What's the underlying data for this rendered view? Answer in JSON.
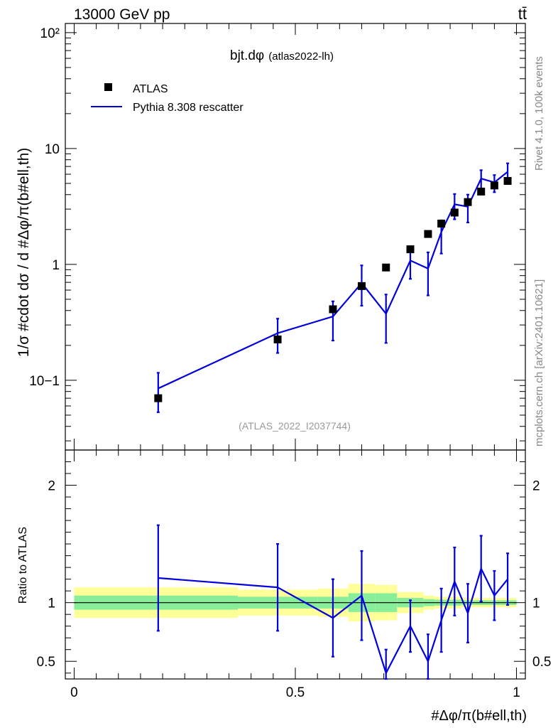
{
  "header": {
    "energy_label": "13000 GeV pp",
    "process_label": "tt̄"
  },
  "side_labels": {
    "rivet": "Rivet 4.1.0,  100k events",
    "mcplots": "mcplots.cern.ch [arXiv:2401.10621]"
  },
  "colors": {
    "mc_line": "#0000dd",
    "band_inner": "#88ee99",
    "band_outer": "#ffff99",
    "data_marker": "#000000"
  },
  "chart_data": [
    {
      "type": "scatter",
      "panel": "main",
      "title": "bjt.dφ",
      "title_suffix": "(atlas2022-lh)",
      "analysis_label": "(ATLAS_2022_I2037744)",
      "ylabel": "1/σ #cdot dσ / d #Δφ/π(b#ell,th)",
      "yscale": "log",
      "ylim": [
        0.025,
        120
      ],
      "xlim": [
        -0.02,
        1.02
      ],
      "y_ticks": [
        "10−1",
        "1",
        "10",
        "10²"
      ],
      "legend": {
        "data": "ATLAS",
        "mc": "Pythia 8.308 rescatter",
        "placement": "top-left"
      },
      "series": [
        {
          "name": "ATLAS",
          "x": [
            0.19,
            0.46,
            0.585,
            0.65,
            0.705,
            0.76,
            0.8,
            0.83,
            0.86,
            0.89,
            0.92,
            0.95,
            0.98
          ],
          "y": [
            0.07,
            0.225,
            0.41,
            0.65,
            0.94,
            1.35,
            1.83,
            2.25,
            2.8,
            3.45,
            4.25,
            4.8,
            5.25
          ]
        },
        {
          "name": "Pythia 8.308 rescatter",
          "x": [
            0.19,
            0.46,
            0.585,
            0.65,
            0.705,
            0.76,
            0.8,
            0.83,
            0.86,
            0.89,
            0.92,
            0.95,
            0.98
          ],
          "y": [
            0.085,
            0.255,
            0.355,
            0.69,
            0.375,
            1.08,
            0.92,
            1.9,
            3.3,
            3.15,
            5.5,
            5.1,
            6.3
          ],
          "yerr_low": [
            0.032,
            0.083,
            0.135,
            0.25,
            0.165,
            0.33,
            0.38,
            0.66,
            0.85,
            0.85,
            1.3,
            0.9,
            0.95
          ],
          "yerr_high": [
            0.031,
            0.085,
            0.125,
            0.29,
            0.175,
            0.32,
            0.35,
            0.5,
            0.75,
            0.85,
            1.0,
            0.8,
            1.15
          ]
        }
      ]
    },
    {
      "type": "line",
      "panel": "ratio",
      "ylabel": "Ratio to ATLAS",
      "ylim": [
        0.35,
        2.3
      ],
      "xlim": [
        -0.02,
        1.02
      ],
      "xlabel": "#Δφ/π(b#ell,th)",
      "x_ticks": [
        "0",
        "0.5",
        "1"
      ],
      "y_ticks": [
        "0.5",
        "1",
        "2"
      ],
      "bins": [
        0.0,
        0.37,
        0.55,
        0.62,
        0.68,
        0.73,
        0.79,
        0.815,
        0.845,
        0.875,
        0.905,
        0.935,
        0.965,
        1.0
      ],
      "band_inner_half": [
        0.06,
        0.05,
        0.05,
        0.08,
        0.08,
        0.04,
        0.03,
        0.025,
        0.025,
        0.02,
        0.02,
        0.02,
        0.02
      ],
      "band_outer_half": [
        0.13,
        0.11,
        0.12,
        0.16,
        0.15,
        0.09,
        0.06,
        0.05,
        0.05,
        0.04,
        0.04,
        0.04,
        0.04
      ],
      "series": [
        {
          "name": "Pythia 8.308 rescatter / ATLAS",
          "x": [
            0.19,
            0.46,
            0.585,
            0.65,
            0.705,
            0.76,
            0.8,
            0.83,
            0.86,
            0.89,
            0.92,
            0.95,
            0.98
          ],
          "y": [
            1.21,
            1.13,
            0.87,
            1.06,
            0.4,
            0.8,
            0.5,
            0.85,
            1.18,
            0.91,
            1.29,
            1.06,
            1.2
          ],
          "yerr": [
            0.45,
            0.37,
            0.33,
            0.38,
            0.2,
            0.22,
            0.23,
            0.27,
            0.29,
            0.25,
            0.28,
            0.21,
            0.22
          ]
        }
      ]
    }
  ]
}
